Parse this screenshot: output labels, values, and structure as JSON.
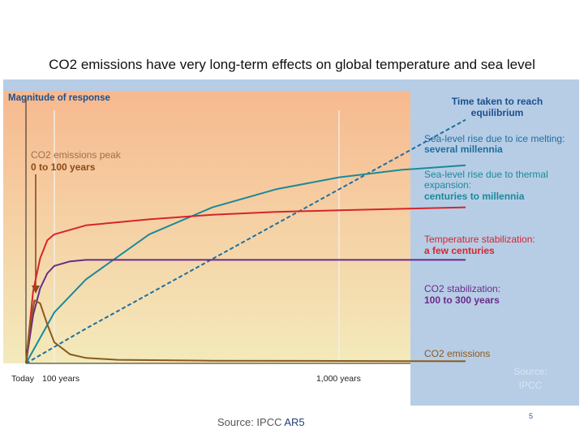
{
  "slide": {
    "title": "CO2 emissions have very long-term effects on global temperature and sea level",
    "footer_source_prefix": "Source: IPCC ",
    "footer_source_suffix": "AR5",
    "page_number": "5"
  },
  "chart_data": {
    "type": "line",
    "title": "",
    "ylabel": "Magnitude of response",
    "right_header": [
      "Time taken to reach",
      "equilibrium"
    ],
    "x_ticks": [
      "Today",
      "100 years",
      "1,000 years"
    ],
    "peak_annotation": {
      "line1": "CO2 emissions peak",
      "line2": "0 to 100 years"
    },
    "overlay_source": [
      "Source:",
      "IPCC"
    ],
    "grid": false,
    "colors": {
      "background_top": "#f7b98f",
      "background_bottom": "#f3eabb",
      "panel": "#b7cde6",
      "header_text": "#1b4f8f",
      "sea_ice": "#1e6fa0",
      "thermal": "#1a8a99",
      "temperature": "#d4262a",
      "co2_stabilization": "#6a2a8a",
      "co2_emissions": "#8a5a1e"
    },
    "series": [
      {
        "name": "Sea-level rise due to ice melting:",
        "label_line2": "several millennia",
        "style": "dashed",
        "x": [
          0,
          200,
          400,
          600,
          800,
          1000,
          1200,
          1400
        ],
        "y": [
          0,
          0.116,
          0.232,
          0.348,
          0.464,
          0.58,
          0.696,
          0.812
        ]
      },
      {
        "name": "Sea-level rise due to thermal expansion:",
        "label_line2": "centuries to millennia",
        "style": "solid",
        "x": [
          0,
          100,
          200,
          400,
          600,
          800,
          1000,
          1200,
          1400
        ],
        "y": [
          0,
          0.17,
          0.28,
          0.43,
          0.52,
          0.58,
          0.62,
          0.645,
          0.66
        ]
      },
      {
        "name": "Temperature stabilization:",
        "label_line2": "a few centuries",
        "style": "solid",
        "x": [
          0,
          25,
          50,
          75,
          100,
          200,
          400,
          600,
          800,
          1000,
          1200,
          1400
        ],
        "y": [
          0,
          0.24,
          0.35,
          0.41,
          0.43,
          0.46,
          0.48,
          0.495,
          0.505,
          0.51,
          0.515,
          0.52
        ]
      },
      {
        "name": "CO2 stabilization:",
        "label_line2": "100 to 300 years",
        "style": "solid",
        "x": [
          0,
          25,
          50,
          75,
          100,
          150,
          200,
          300,
          600,
          1000,
          1400
        ],
        "y": [
          0,
          0.16,
          0.25,
          0.3,
          0.325,
          0.34,
          0.345,
          0.345,
          0.345,
          0.345,
          0.345
        ]
      },
      {
        "name": "CO2 emissions",
        "label_line2": "",
        "style": "solid",
        "x": [
          0,
          15,
          30,
          50,
          75,
          100,
          150,
          200,
          300,
          600,
          1000,
          1400
        ],
        "y": [
          0,
          0.13,
          0.21,
          0.2,
          0.13,
          0.07,
          0.03,
          0.018,
          0.012,
          0.009,
          0.008,
          0.007
        ]
      }
    ],
    "x_domain": [
      0,
      1400
    ],
    "y_domain": [
      0,
      1
    ]
  }
}
